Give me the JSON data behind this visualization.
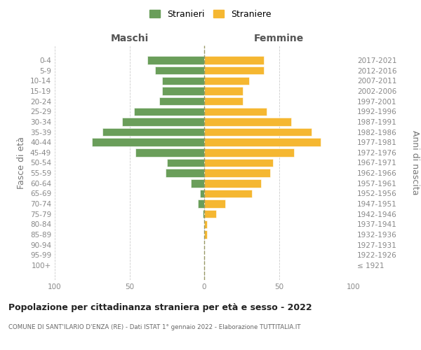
{
  "age_groups": [
    "100+",
    "95-99",
    "90-94",
    "85-89",
    "80-84",
    "75-79",
    "70-74",
    "65-69",
    "60-64",
    "55-59",
    "50-54",
    "45-49",
    "40-44",
    "35-39",
    "30-34",
    "25-29",
    "20-24",
    "15-19",
    "10-14",
    "5-9",
    "0-4"
  ],
  "birth_years": [
    "≤ 1921",
    "1922-1926",
    "1927-1931",
    "1932-1936",
    "1937-1941",
    "1942-1946",
    "1947-1951",
    "1952-1956",
    "1957-1961",
    "1962-1966",
    "1967-1971",
    "1972-1976",
    "1977-1981",
    "1982-1986",
    "1987-1991",
    "1992-1996",
    "1997-2001",
    "2002-2006",
    "2007-2011",
    "2012-2016",
    "2017-2021"
  ],
  "maschi": [
    0,
    0,
    0,
    0,
    0,
    1,
    4,
    3,
    9,
    26,
    25,
    46,
    75,
    68,
    55,
    47,
    30,
    28,
    28,
    33,
    38
  ],
  "femmine": [
    0,
    0,
    0,
    2,
    2,
    8,
    14,
    32,
    38,
    44,
    46,
    60,
    78,
    72,
    58,
    42,
    26,
    26,
    30,
    40,
    40
  ],
  "maschi_color": "#6a9e5a",
  "femmine_color": "#f5b731",
  "title": "Popolazione per cittadinanza straniera per età e sesso - 2022",
  "subtitle": "COMUNE DI SANT'ILARIO D'ENZA (RE) - Dati ISTAT 1° gennaio 2022 - Elaborazione TUTTITALIA.IT",
  "xlabel_left": "Maschi",
  "xlabel_right": "Femmine",
  "ylabel_left": "Fasce di età",
  "ylabel_right": "Anni di nascita",
  "legend_maschi": "Stranieri",
  "legend_femmine": "Straniere",
  "xlim": 100
}
